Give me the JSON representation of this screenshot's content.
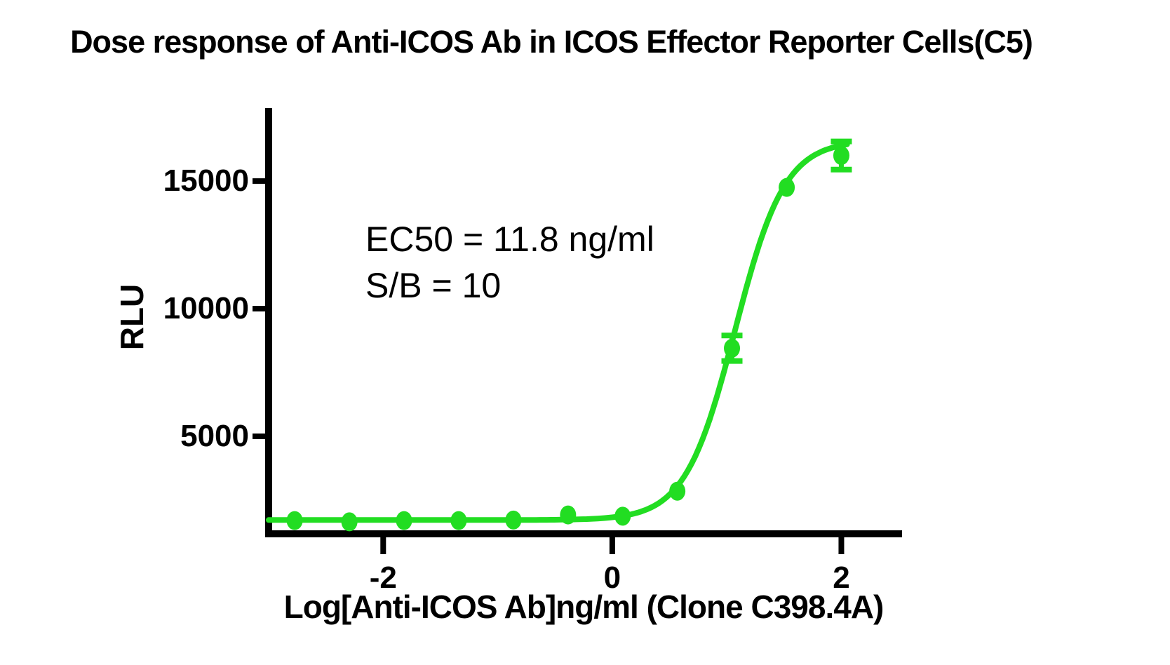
{
  "figure": {
    "background": "#ffffff",
    "axis_color": "#000000",
    "text_color": "#000000"
  },
  "chart_data": {
    "type": "line",
    "title": "Dose response of Anti-ICOS Ab in ICOS Effector Reporter Cells(C5)",
    "xlabel": "Log[Anti-ICOS Ab]ng/ml (Clone C398.4A)",
    "ylabel": "RLU",
    "annotation": [
      "EC50 = 11.8 ng/ml",
      "S/B = 10"
    ],
    "ec50_ng_ml": 11.8,
    "signal_to_background": 10,
    "grid": false,
    "legend": "none",
    "x_ticks": [
      -2,
      0,
      2
    ],
    "y_ticks": [
      5000,
      10000,
      15000
    ],
    "xlim": [
      -3.0,
      2.53
    ],
    "ylim": [
      1180,
      17860
    ],
    "series": [
      {
        "name": "Anti-ICOS Ab (Clone C398.4A)",
        "marker": "circle",
        "color": "#22dd22",
        "x": [
          -2.773,
          -2.295,
          -1.818,
          -1.341,
          -0.863,
          -0.386,
          0.091,
          0.568,
          1.045,
          1.523,
          2.0
        ],
        "y": [
          1700,
          1650,
          1700,
          1700,
          1720,
          1920,
          1870,
          2850,
          8450,
          14750,
          16000
        ],
        "yerr": [
          0,
          0,
          0,
          0,
          0,
          0,
          0,
          0,
          500,
          0,
          550
        ]
      }
    ],
    "fit_curve": {
      "model": "four-parameter-logistic",
      "bottom": 1720,
      "top": 16600,
      "logEC50": 1.072,
      "hill": 2.0,
      "x_start": -3.0,
      "x_end": 2.05
    }
  }
}
